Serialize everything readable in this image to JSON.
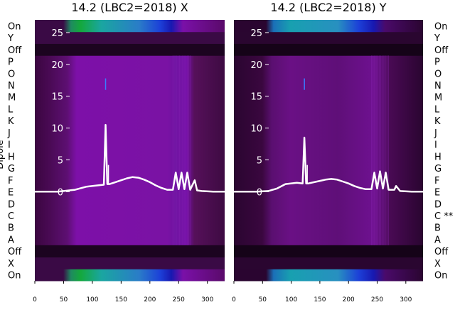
{
  "chart_data": [
    {
      "type": "heatmap",
      "title": "14.2 (LBC2=2018) X",
      "xlim": [
        0,
        330
      ],
      "ylim": [
        -14,
        27
      ],
      "xticks": [
        0,
        50,
        100,
        150,
        200,
        250,
        300
      ],
      "yticks": [
        0,
        5,
        10,
        15,
        20,
        25
      ],
      "ylabel": "Dipole",
      "row_labels": [
        "On",
        "X",
        "Off",
        "A",
        "B",
        "C",
        "D",
        "E",
        "F",
        "G",
        "H",
        "I",
        "J",
        "K",
        "L",
        "M",
        "N",
        "O",
        "P",
        "Off",
        "Y",
        "On"
      ],
      "line_series": {
        "x": [
          0,
          40,
          70,
          90,
          110,
          120,
          123,
          126,
          130,
          140,
          150,
          160,
          170,
          180,
          190,
          200,
          210,
          220,
          230,
          240,
          245,
          250,
          255,
          260,
          265,
          270,
          278,
          282,
          290,
          310,
          330
        ],
        "y": [
          0,
          0,
          0.3,
          0.8,
          1,
          1.1,
          10.5,
          1.2,
          1.2,
          1.5,
          1.8,
          2.1,
          2.3,
          2.2,
          1.9,
          1.5,
          1.0,
          0.6,
          0.3,
          0.3,
          3,
          0.4,
          3,
          0.4,
          3,
          0.3,
          1.8,
          0.2,
          0.1,
          0,
          0
        ]
      }
    },
    {
      "type": "heatmap",
      "title": "14.2 (LBC2=2018) Y",
      "xlim": [
        0,
        330
      ],
      "ylim": [
        -14,
        27
      ],
      "xticks": [
        0,
        50,
        100,
        150,
        200,
        250,
        300
      ],
      "yticks": [
        0,
        5,
        10,
        15,
        20,
        25
      ],
      "row_labels": [
        "On",
        "X",
        "Off",
        "A",
        "B",
        "C **",
        "D",
        "E",
        "F",
        "G",
        "H",
        "I",
        "J",
        "K",
        "L",
        "M",
        "N",
        "O",
        "P",
        "Off",
        "Y",
        "On"
      ],
      "line_series": {
        "x": [
          0,
          40,
          60,
          75,
          90,
          110,
          120,
          123,
          126,
          130,
          140,
          150,
          160,
          170,
          180,
          190,
          200,
          210,
          220,
          230,
          240,
          245,
          250,
          255,
          260,
          265,
          270,
          280,
          283,
          290,
          310,
          330
        ],
        "y": [
          0,
          0,
          0.1,
          0.5,
          1.2,
          1.4,
          1.3,
          8.5,
          1.3,
          1.3,
          1.5,
          1.7,
          1.9,
          2.0,
          1.9,
          1.6,
          1.3,
          0.9,
          0.6,
          0.4,
          0.4,
          3,
          0.5,
          3.2,
          0.5,
          3,
          0.3,
          0.3,
          0.9,
          0.1,
          0,
          0
        ]
      }
    }
  ]
}
